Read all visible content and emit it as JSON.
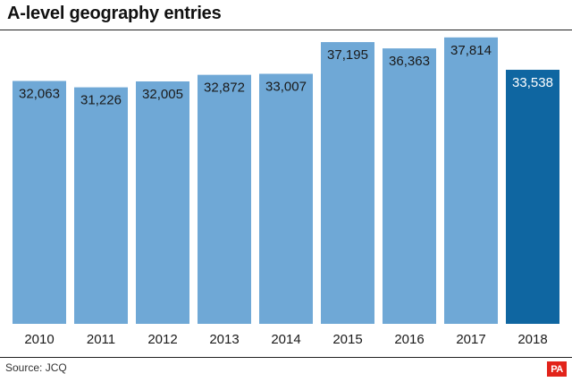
{
  "title": "A-level geography entries",
  "source": "Source: JCQ",
  "logo": "PA",
  "colors": {
    "bar": "#6fa8d6",
    "highlight": "#0f66a1",
    "label": "#1a1a1a",
    "highlight_label": "#ffffff"
  },
  "chart_data": {
    "type": "bar",
    "categories": [
      "2010",
      "2011",
      "2012",
      "2013",
      "2014",
      "2015",
      "2016",
      "2017",
      "2018"
    ],
    "values": [
      32063,
      31226,
      32005,
      32872,
      33007,
      37195,
      36363,
      37814,
      33538
    ],
    "data_labels": [
      "32,063",
      "31,226",
      "32,005",
      "32,872",
      "33,007",
      "37,195",
      "36,363",
      "37,814",
      "33,538"
    ],
    "highlight_category": "2018",
    "title": "A-level geography entries",
    "xlabel": "",
    "ylabel": "",
    "ylim": [
      0,
      38500
    ],
    "grid": false,
    "legend": "none"
  }
}
